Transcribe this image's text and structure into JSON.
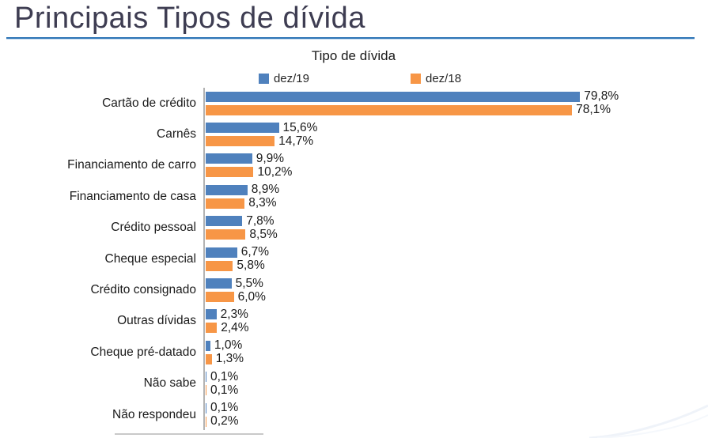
{
  "page": {
    "title": "Principais Tipos de dívida"
  },
  "chart_data": {
    "type": "bar",
    "orientation": "horizontal",
    "title": "Tipo de dívida",
    "xlabel": "",
    "ylabel": "",
    "xlim": [
      0,
      80
    ],
    "grid": false,
    "legend_position": "top",
    "categories": [
      "Cartão de crédito",
      "Carnês",
      "Financiamento de carro",
      "Financiamento de casa",
      "Crédito pessoal",
      "Cheque especial",
      "Crédito consignado",
      "Outras dívidas",
      "Cheque pré-datado",
      "Não sabe",
      "Não respondeu"
    ],
    "series": [
      {
        "name": "dez/19",
        "color": "#4F81BD",
        "values": [
          79.8,
          15.6,
          9.9,
          8.9,
          7.8,
          6.7,
          5.5,
          2.3,
          1.0,
          0.1,
          0.1
        ],
        "labels": [
          "79,8%",
          "15,6%",
          "9,9%",
          "8,9%",
          "7,8%",
          "6,7%",
          "5,5%",
          "2,3%",
          "1,0%",
          "0,1%",
          "0,1%"
        ]
      },
      {
        "name": "dez/18",
        "color": "#F79646",
        "values": [
          78.1,
          14.7,
          10.2,
          8.3,
          8.5,
          5.8,
          6.0,
          2.4,
          1.3,
          0.1,
          0.2
        ],
        "labels": [
          "78,1%",
          "14,7%",
          "10,2%",
          "8,3%",
          "8,5%",
          "5,8%",
          "6,0%",
          "2,4%",
          "1,3%",
          "0,1%",
          "0,2%"
        ]
      }
    ],
    "colors": {
      "title_text": "#3E3D52",
      "accent_underline": "#2E75B6",
      "axis_line": "#B3B3B3",
      "label_text": "#1a1a1a"
    }
  }
}
